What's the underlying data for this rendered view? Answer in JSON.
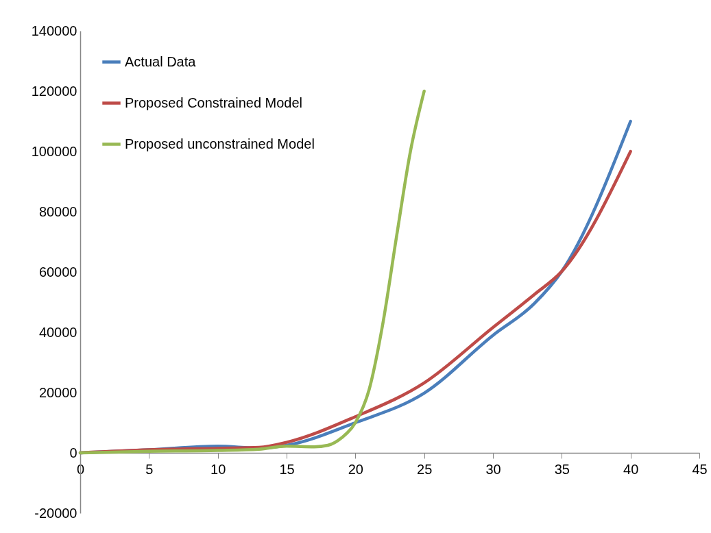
{
  "chart_data": {
    "type": "line",
    "xlim": [
      0,
      45
    ],
    "xticks": [
      0,
      5,
      10,
      15,
      20,
      25,
      30,
      35,
      40,
      45
    ],
    "ylim": [
      -20000,
      140000
    ],
    "yticks": [
      -20000,
      0,
      20000,
      40000,
      60000,
      80000,
      100000,
      120000,
      140000
    ],
    "grid": false,
    "legend": "top left",
    "line_style": "solid",
    "series": [
      {
        "name": "Actual Data",
        "color": "#4a7ebb",
        "x": [
          0,
          5,
          10,
          13,
          15,
          20,
          25,
          30,
          33,
          35,
          40
        ],
        "values": [
          0,
          1000,
          2200,
          1600,
          2500,
          10000,
          19800,
          39000,
          49500,
          60200,
          110000
        ]
      },
      {
        "name": "Proposed Constrained Model",
        "color": "#be4b48",
        "x": [
          0,
          5,
          10,
          13,
          15,
          20,
          25,
          30,
          33,
          35,
          40
        ],
        "values": [
          0,
          1000,
          1500,
          1800,
          3500,
          12000,
          23200,
          41600,
          52500,
          60200,
          100000
        ]
      },
      {
        "name": "Proposed unconstrained Model",
        "color": "#98b954",
        "x": [
          0,
          5,
          10,
          13,
          15,
          17,
          18,
          19,
          20,
          21,
          22,
          23,
          24,
          25
        ],
        "values": [
          0,
          500,
          800,
          1200,
          2200,
          2000,
          2500,
          5000,
          10000,
          21000,
          43000,
          72000,
          100000,
          120000
        ]
      }
    ]
  }
}
